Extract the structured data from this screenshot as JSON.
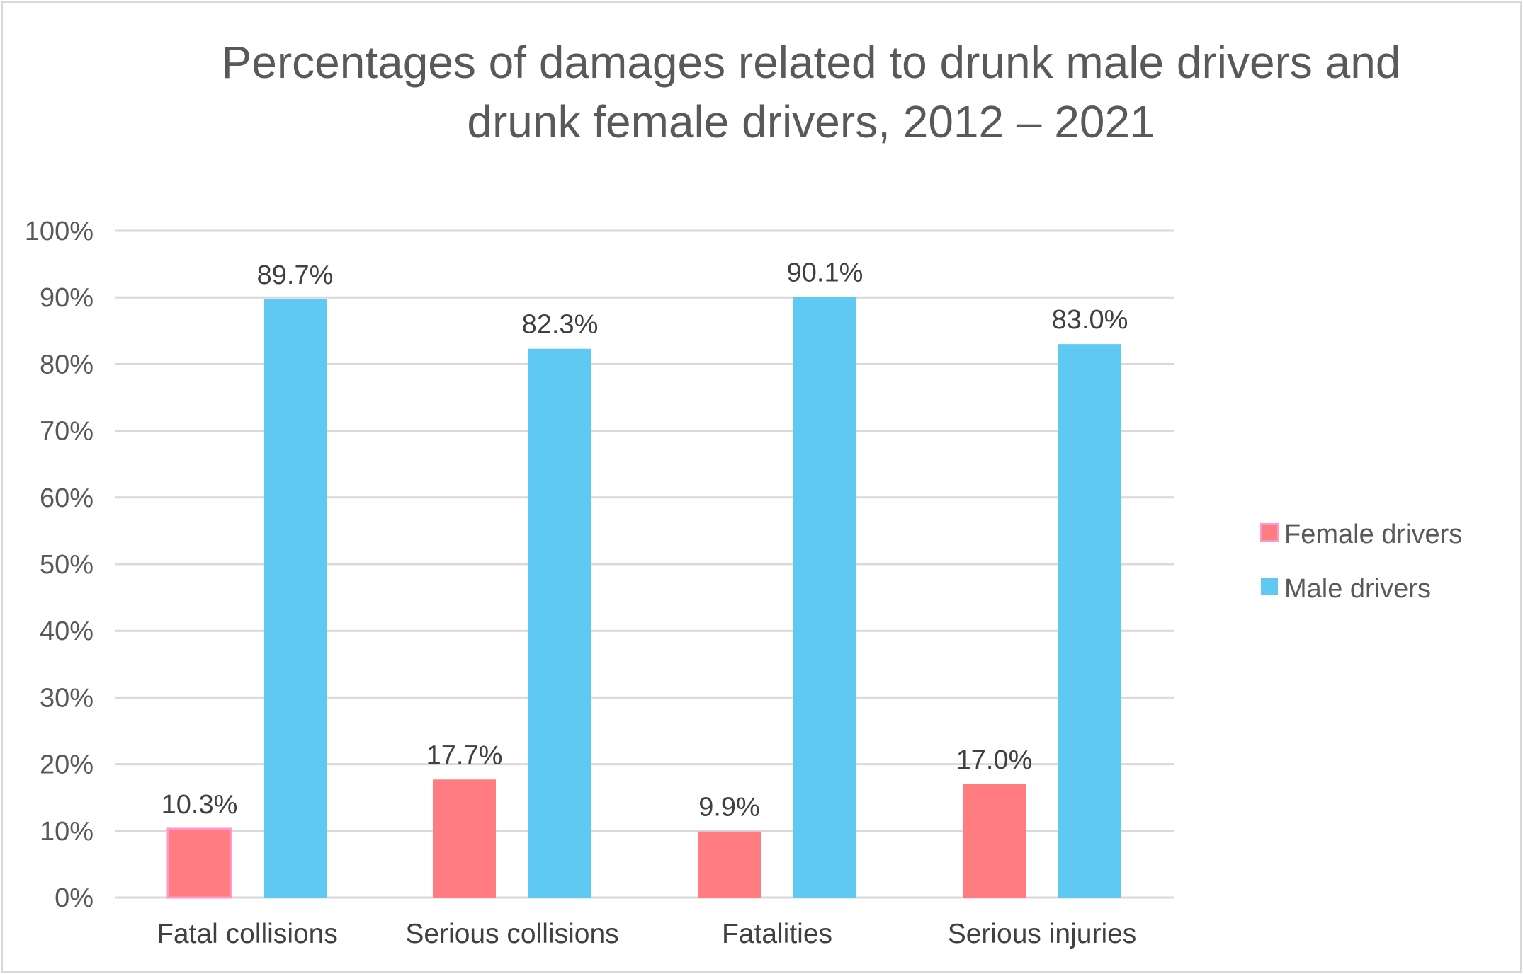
{
  "chart_data": {
    "type": "bar",
    "title": "Percentages of damages related to drunk male drivers and drunk female drivers, 2012 – 2021",
    "title_lines": [
      "Percentages of damages related to drunk male drivers and",
      "drunk female drivers, 2012 – 2021"
    ],
    "categories": [
      "Fatal collisions",
      "Serious collisions",
      "Fatalities",
      "Serious injuries"
    ],
    "series": [
      {
        "name": "Female drivers",
        "color": "#ff7c80",
        "values": [
          10.3,
          17.7,
          9.9,
          17.0
        ],
        "labels": [
          "10.3%",
          "17.7%",
          "9.9%",
          "17.0%"
        ]
      },
      {
        "name": "Male drivers",
        "color": "#5fc9f3",
        "values": [
          89.7,
          82.3,
          90.1,
          83.0
        ],
        "labels": [
          "89.7%",
          "82.3%",
          "90.1%",
          "83.0%"
        ]
      }
    ],
    "ylim": [
      0,
      100
    ],
    "yticks": [
      "0%",
      "10%",
      "20%",
      "30%",
      "40%",
      "50%",
      "60%",
      "70%",
      "80%",
      "90%",
      "100%"
    ],
    "xlabel": "",
    "ylabel": "",
    "grid": true,
    "legend_position": "right"
  }
}
